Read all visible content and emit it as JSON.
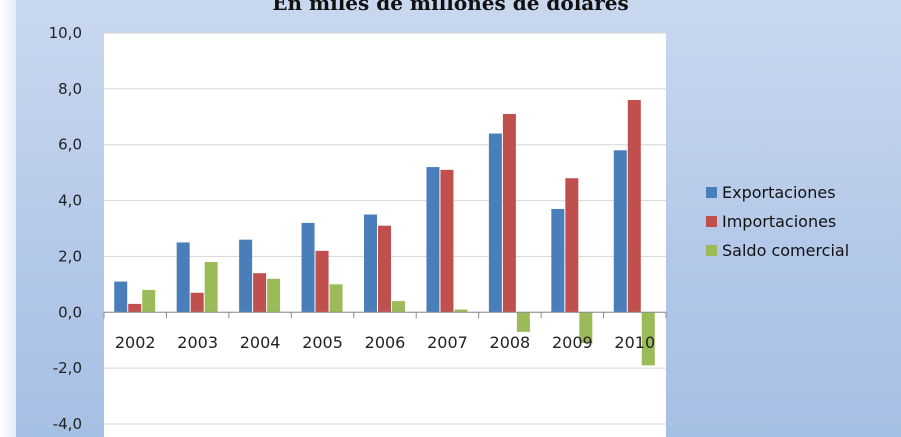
{
  "chart_data": {
    "type": "bar",
    "title": "En miles de millones de dólares",
    "categories": [
      "2002",
      "2003",
      "2004",
      "2005",
      "2006",
      "2007",
      "2008",
      "2009",
      "2010"
    ],
    "series": [
      {
        "name": "Exportaciones",
        "color": "#4a7ebb",
        "values": [
          1.1,
          2.5,
          2.6,
          3.2,
          3.5,
          5.2,
          6.4,
          3.7,
          5.8
        ]
      },
      {
        "name": "Importaciones",
        "color": "#c0504d",
        "values": [
          0.3,
          0.7,
          1.4,
          2.2,
          3.1,
          5.1,
          7.1,
          4.8,
          7.6
        ]
      },
      {
        "name": "Saldo comercial",
        "color": "#9bbb59",
        "values": [
          0.8,
          1.8,
          1.2,
          1.0,
          0.4,
          0.1,
          -0.7,
          -1.1,
          -1.9
        ]
      }
    ],
    "ylim": [
      -4.0,
      10.0
    ],
    "yticks": [
      "10,0",
      "8,0",
      "6,0",
      "4,0",
      "2,0",
      "0,0",
      "-2,0",
      "-4,0"
    ],
    "ytick_values": [
      10,
      8,
      6,
      4,
      2,
      0,
      -2,
      -4
    ],
    "xlabel": "",
    "ylabel": "",
    "legend_position": "right",
    "grid": true
  }
}
